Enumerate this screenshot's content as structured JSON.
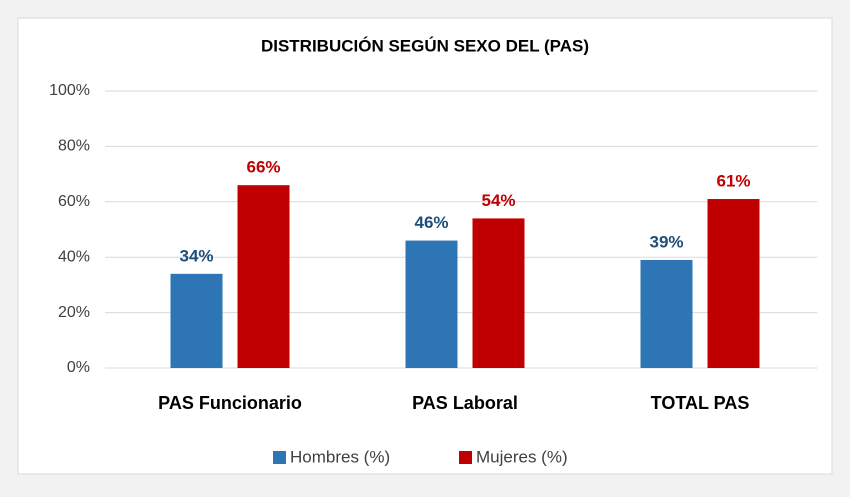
{
  "chart_data": {
    "type": "bar",
    "title": "DISTRIBUCIÓN SEGÚN SEXO DEL (PAS)",
    "categories": [
      "PAS Funcionario",
      "PAS Laboral",
      "TOTAL PAS"
    ],
    "series": [
      {
        "name": "Hombres (%)",
        "color": "#2e75b6",
        "values": [
          34,
          46,
          39
        ],
        "value_labels": [
          "34%",
          "46%",
          "39%"
        ]
      },
      {
        "name": "Mujeres (%)",
        "color": "#c00000",
        "values": [
          66,
          54,
          61
        ],
        "value_labels": [
          "66%",
          "54%",
          "61%"
        ]
      }
    ],
    "ylim": [
      0,
      100
    ],
    "yticks": [
      {
        "value": 0,
        "label": "0%"
      },
      {
        "value": 20,
        "label": "20%"
      },
      {
        "value": 40,
        "label": "40%"
      },
      {
        "value": 60,
        "label": "60%"
      },
      {
        "value": 80,
        "label": "80%"
      },
      {
        "value": 100,
        "label": "100%"
      }
    ],
    "grid": true,
    "legend": "bottom"
  }
}
